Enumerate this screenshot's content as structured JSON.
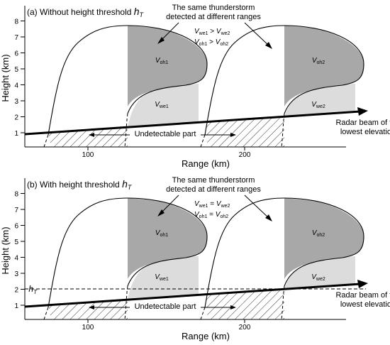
{
  "panels": [
    {
      "title": "(a) Without height threshold ",
      "title_sym": "h",
      "title_sub": "T",
      "annotation_1": "The same thunderstorm",
      "annotation_2": "detected at different ranges",
      "relations": [
        {
          "l": "V",
          "ls": "we1",
          "op": " > ",
          "r": "V",
          "rs": "we2"
        },
        {
          "l": "V",
          "ls": "oh1",
          "op": " > ",
          "r": "V",
          "rs": "oh2"
        }
      ],
      "volumes": [
        {
          "v": "V",
          "s": "oh1"
        },
        {
          "v": "V",
          "s": "we1"
        },
        {
          "v": "V",
          "s": "oh2"
        },
        {
          "v": "V",
          "s": "we2"
        }
      ],
      "undetectable": "Undetectable part",
      "beam_1": "Radar beam of the",
      "beam_2": "lowest elevation",
      "ylabel": "Height (km)",
      "xlabel": "Range (km)",
      "yticks": [
        "1",
        "2",
        "3",
        "4",
        "5",
        "6",
        "7",
        "8"
      ],
      "xticks": [
        "100",
        "200"
      ],
      "threshold": false
    },
    {
      "title": "(b) With height threshold ",
      "title_sym": "h",
      "title_sub": "T",
      "annotation_1": "The same thunderstorm",
      "annotation_2": "detected at different ranges",
      "relations": [
        {
          "l": "V",
          "ls": "we1",
          "op": " = ",
          "r": "V",
          "rs": "we2"
        },
        {
          "l": "V",
          "ls": "oh1",
          "op": " = ",
          "r": "V",
          "rs": "oh2"
        }
      ],
      "volumes": [
        {
          "v": "V",
          "s": "oh1"
        },
        {
          "v": "V",
          "s": "we1"
        },
        {
          "v": "V",
          "s": "oh2"
        },
        {
          "v": "V",
          "s": "we2"
        }
      ],
      "undetectable": "Undetectable part",
      "beam_1": "Radar beam of the",
      "beam_2": "lowest elevation",
      "ylabel": "Height (km)",
      "xlabel": "Range (km)",
      "yticks": [
        "1",
        "2",
        "3",
        "4",
        "5",
        "6",
        "7",
        "8"
      ],
      "xticks": [
        "100",
        "200"
      ],
      "threshold": true,
      "threshold_sym": "h",
      "threshold_sub": "T"
    }
  ],
  "colors": {
    "overhang": "#a8a8a8",
    "weak_echo": "#dcdcdc",
    "line": "#000000"
  }
}
